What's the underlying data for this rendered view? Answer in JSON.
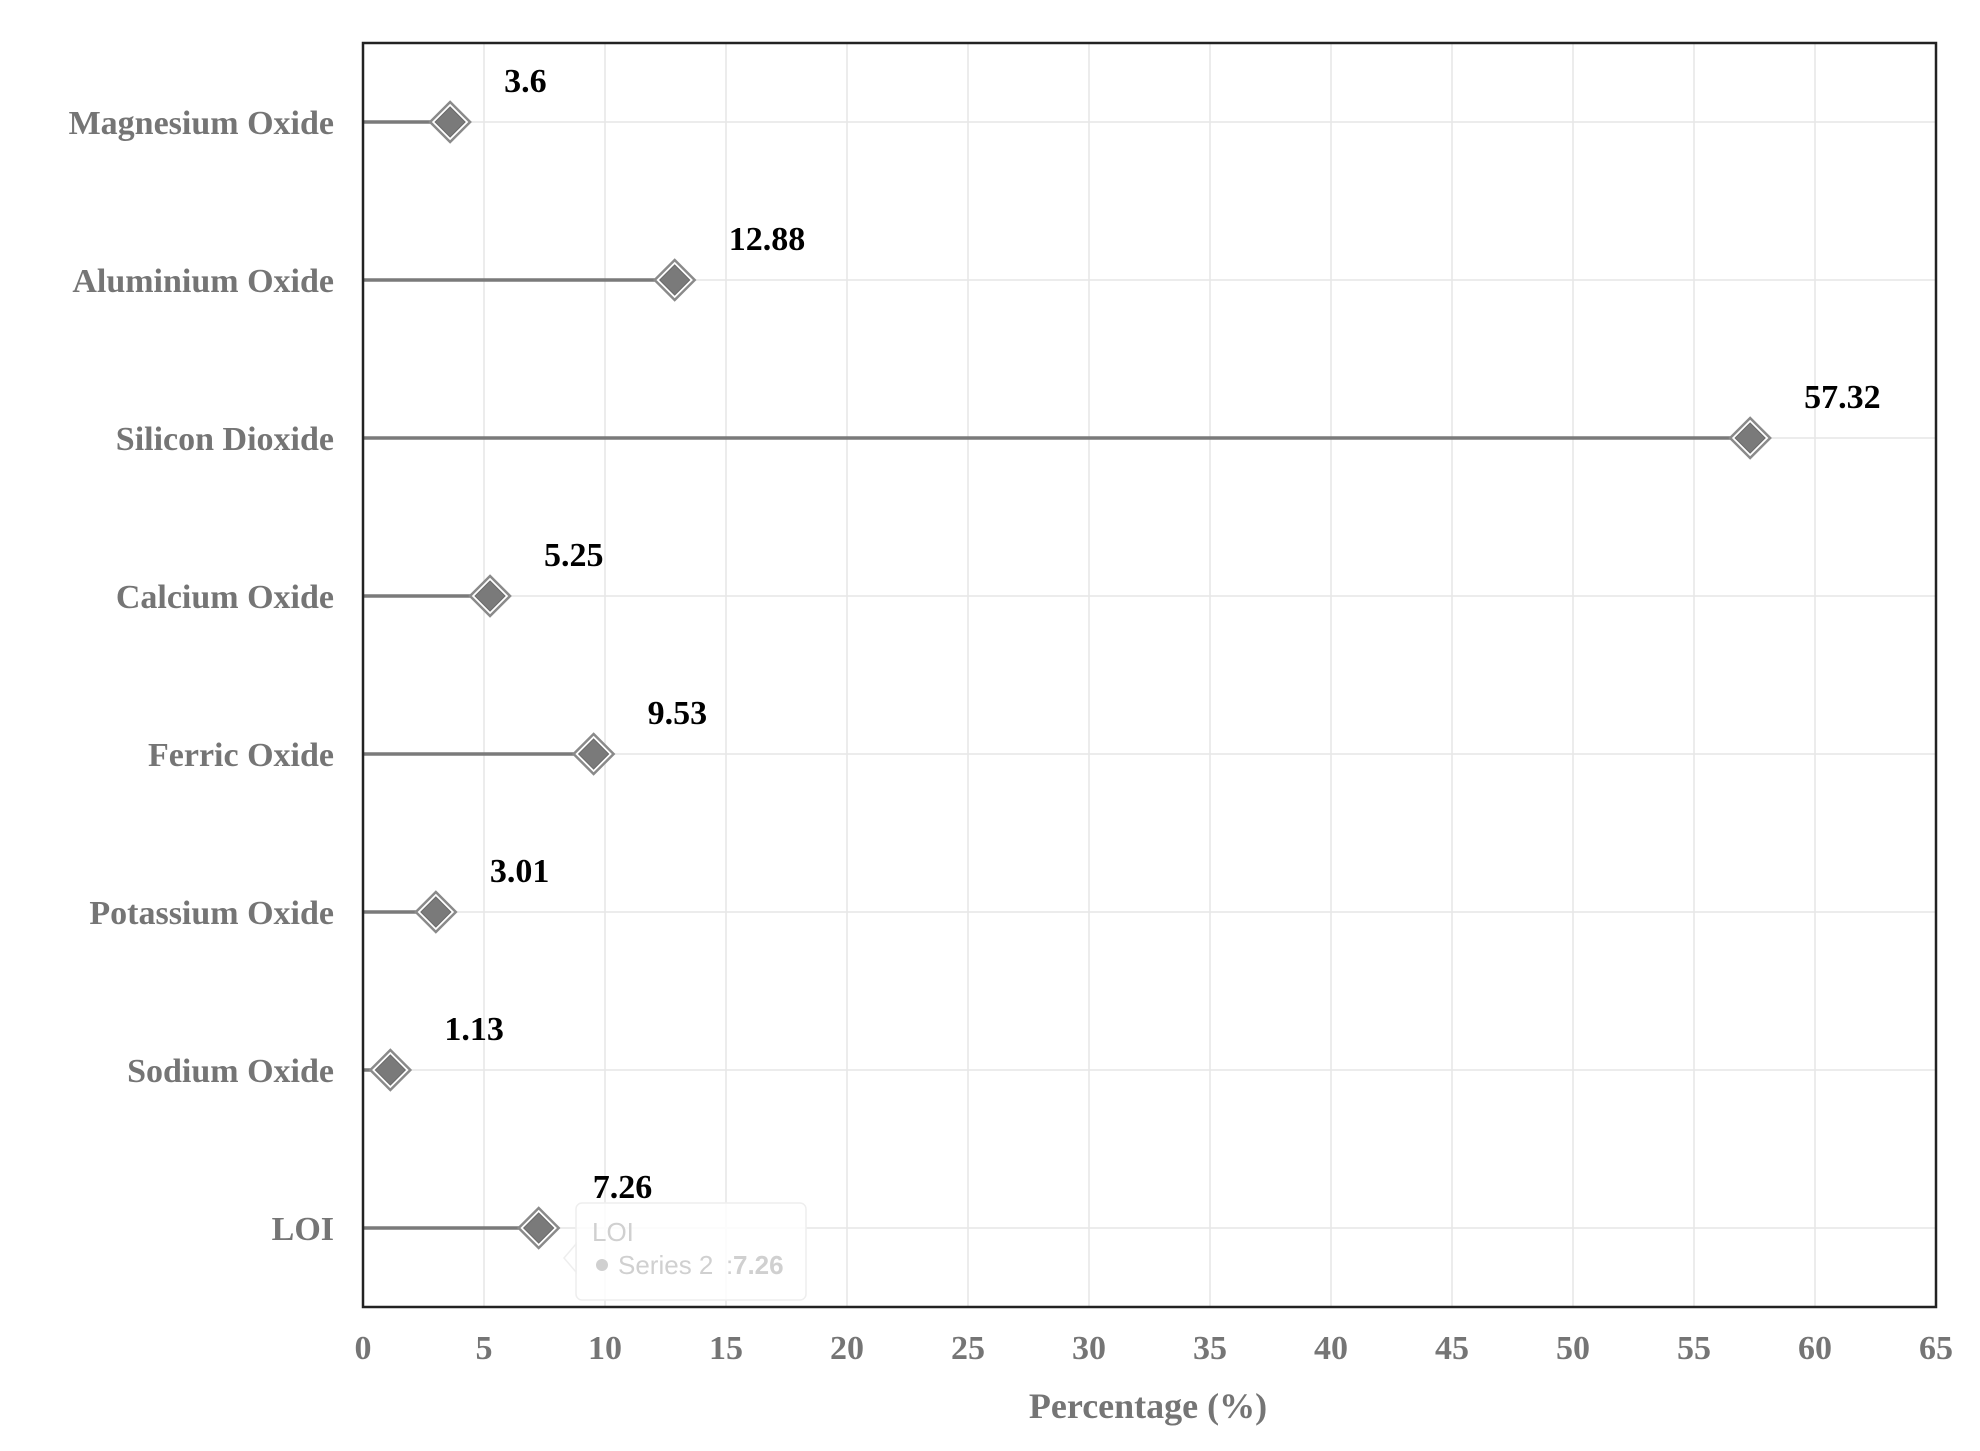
{
  "chart_data": {
    "type": "lollipop",
    "orientation": "horizontal",
    "categories": [
      "Magnesium Oxide",
      "Aluminium Oxide",
      "Silicon Dioxide",
      "Calcium Oxide",
      "Ferric Oxide",
      "Potassium Oxide",
      "Sodium Oxide",
      "LOI"
    ],
    "values": [
      3.6,
      12.88,
      57.32,
      5.25,
      9.53,
      3.01,
      1.13,
      7.26
    ],
    "data_labels": [
      "3.6",
      "12.88",
      "57.32",
      "5.25",
      "9.53",
      "3.01",
      "1.13",
      "7.26"
    ],
    "xlabel": "Percentage (%)",
    "xlim": [
      0,
      65
    ],
    "xticks": [
      0,
      5,
      10,
      15,
      20,
      25,
      30,
      35,
      40,
      45,
      50,
      55,
      60,
      65
    ],
    "grid": true,
    "marker": "diamond",
    "color": "#7a7a7a",
    "tooltip": {
      "category": "LOI",
      "series": "Series 2",
      "value": "7.26"
    }
  }
}
